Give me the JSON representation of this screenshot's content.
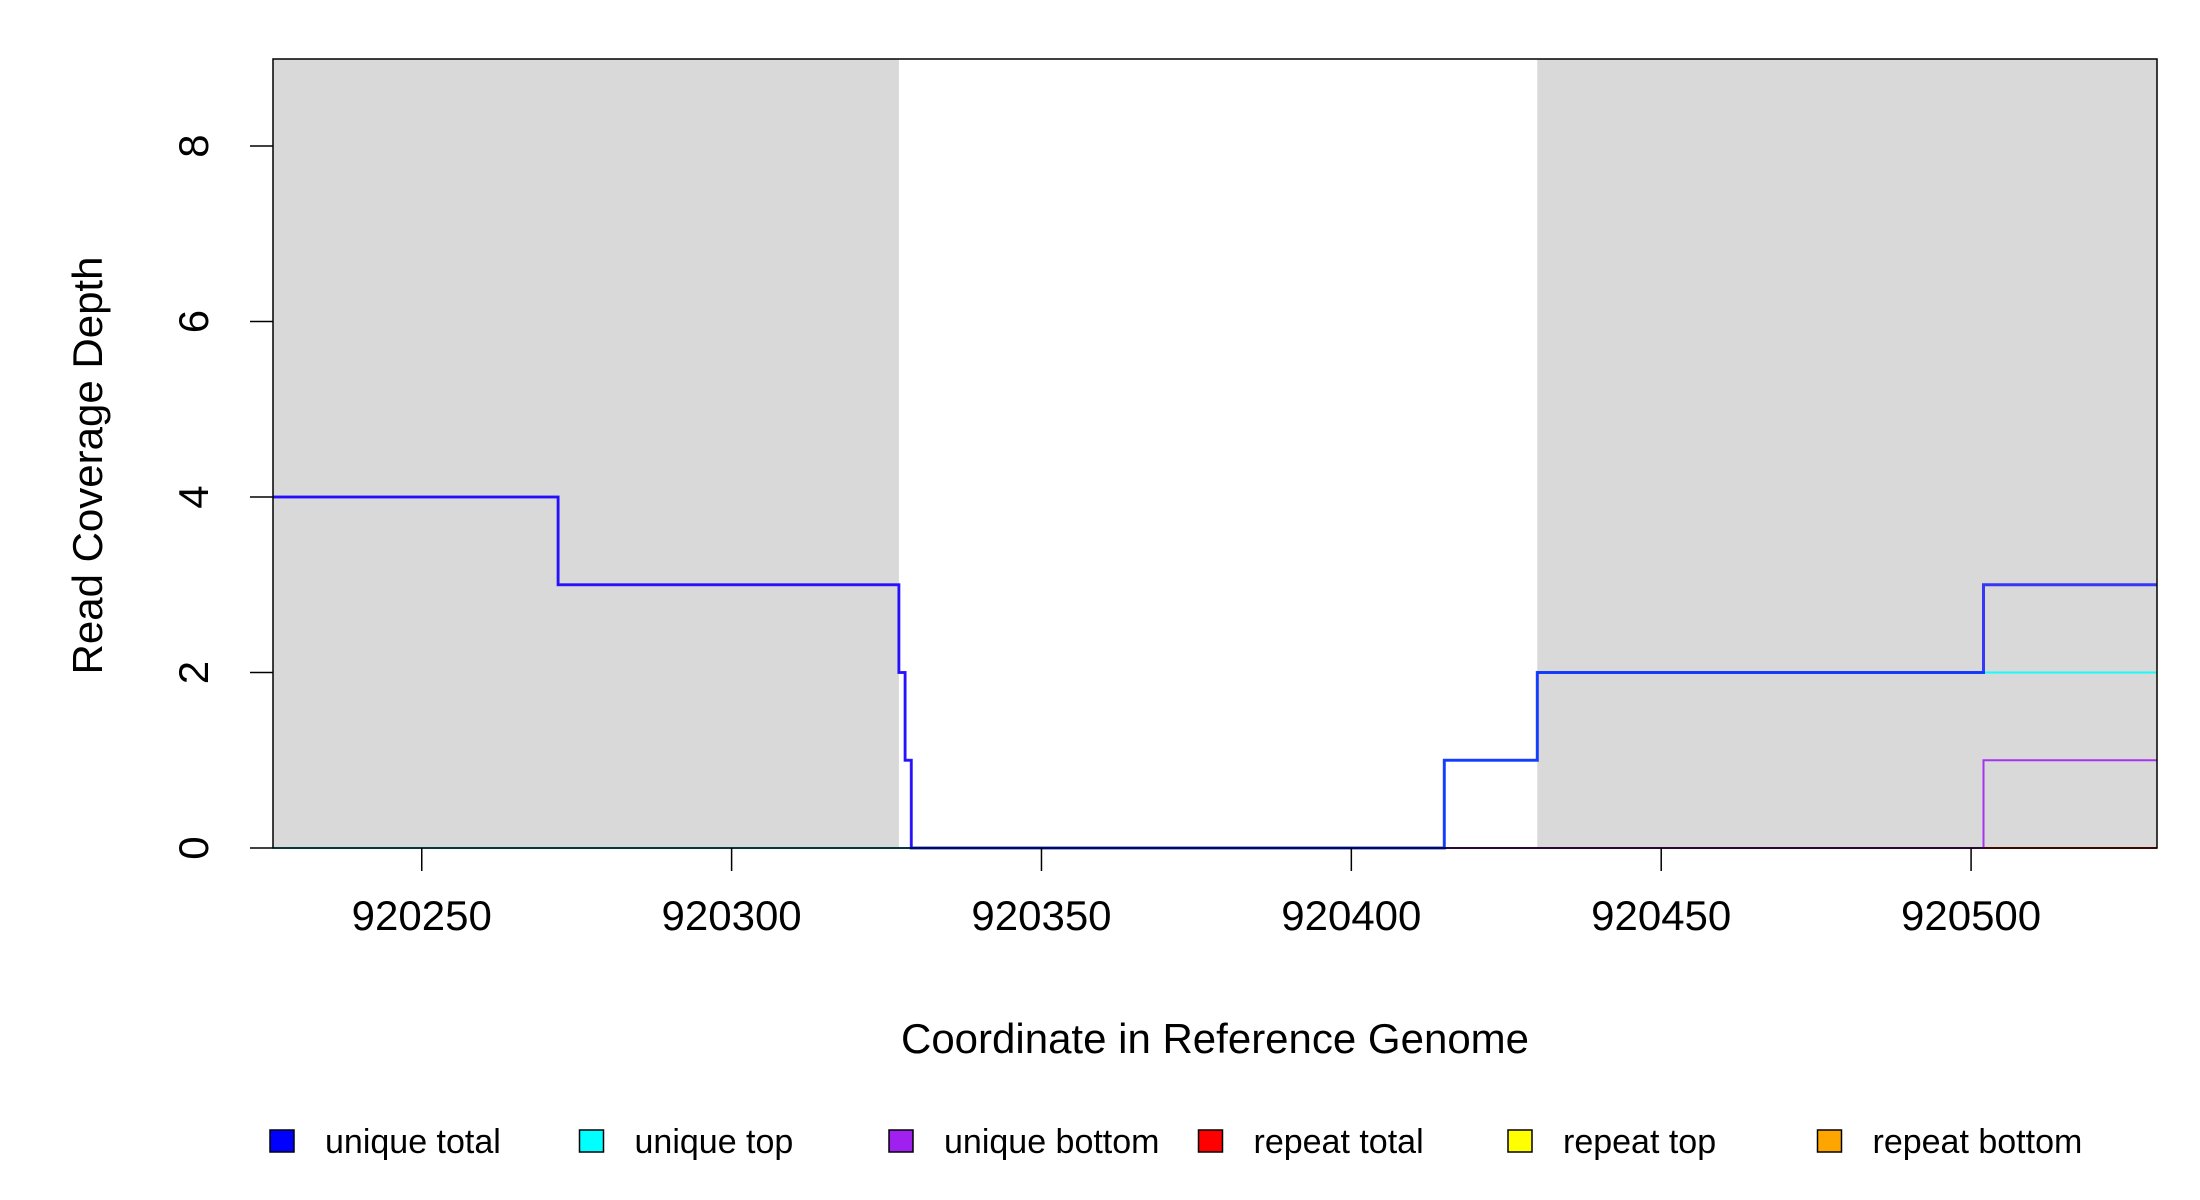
{
  "chart_data": {
    "type": "line",
    "xlabel": "Coordinate in Reference Genome",
    "ylabel": "Read Coverage Depth",
    "xlim": [
      920226,
      920530
    ],
    "ylim": [
      0,
      9
    ],
    "x_ticks": [
      "920250",
      "920300",
      "920350",
      "920400",
      "920450",
      "920500"
    ],
    "y_ticks": [
      "0",
      "2",
      "4",
      "6",
      "8"
    ],
    "shaded_regions": [
      {
        "x_start": 920226,
        "x_end": 920327,
        "color": "#d9d9d9"
      },
      {
        "x_start": 920430,
        "x_end": 920530,
        "color": "#d9d9d9"
      }
    ],
    "series": [
      {
        "name": "unique total",
        "color": "#0000ff",
        "points": [
          [
            920226,
            4
          ],
          [
            920272,
            4
          ],
          [
            920272,
            3
          ],
          [
            920327,
            3
          ],
          [
            920327,
            2
          ],
          [
            920328,
            2
          ],
          [
            920328,
            1
          ],
          [
            920329,
            1
          ],
          [
            920329,
            0
          ],
          [
            920415,
            0
          ],
          [
            920415,
            1
          ],
          [
            920430,
            1
          ],
          [
            920430,
            2
          ],
          [
            920502,
            2
          ],
          [
            920502,
            3
          ],
          [
            920530,
            3
          ]
        ]
      },
      {
        "name": "unique top",
        "color": "#00ffff",
        "points": [
          [
            920226,
            0
          ],
          [
            920415,
            0
          ],
          [
            920415,
            1
          ],
          [
            920430,
            1
          ],
          [
            920430,
            2
          ],
          [
            920530,
            2
          ]
        ]
      },
      {
        "name": "unique bottom",
        "color": "#a020f0",
        "points": [
          [
            920226,
            4
          ],
          [
            920272,
            4
          ],
          [
            920272,
            3
          ],
          [
            920327,
            3
          ],
          [
            920327,
            2
          ],
          [
            920328,
            2
          ],
          [
            920328,
            1
          ],
          [
            920329,
            1
          ],
          [
            920329,
            0
          ],
          [
            920502,
            0
          ],
          [
            920502,
            1
          ],
          [
            920530,
            1
          ]
        ]
      },
      {
        "name": "repeat total",
        "color": "#ff0000",
        "points": [
          [
            920226,
            0
          ],
          [
            920530,
            0
          ]
        ]
      },
      {
        "name": "repeat top",
        "color": "#ffff00",
        "points": [
          [
            920226,
            0
          ],
          [
            920530,
            0
          ]
        ]
      },
      {
        "name": "repeat bottom",
        "color": "#ffa500",
        "points": [
          [
            920226,
            0
          ],
          [
            920530,
            0
          ]
        ]
      }
    ],
    "legend_position": "bottom"
  }
}
